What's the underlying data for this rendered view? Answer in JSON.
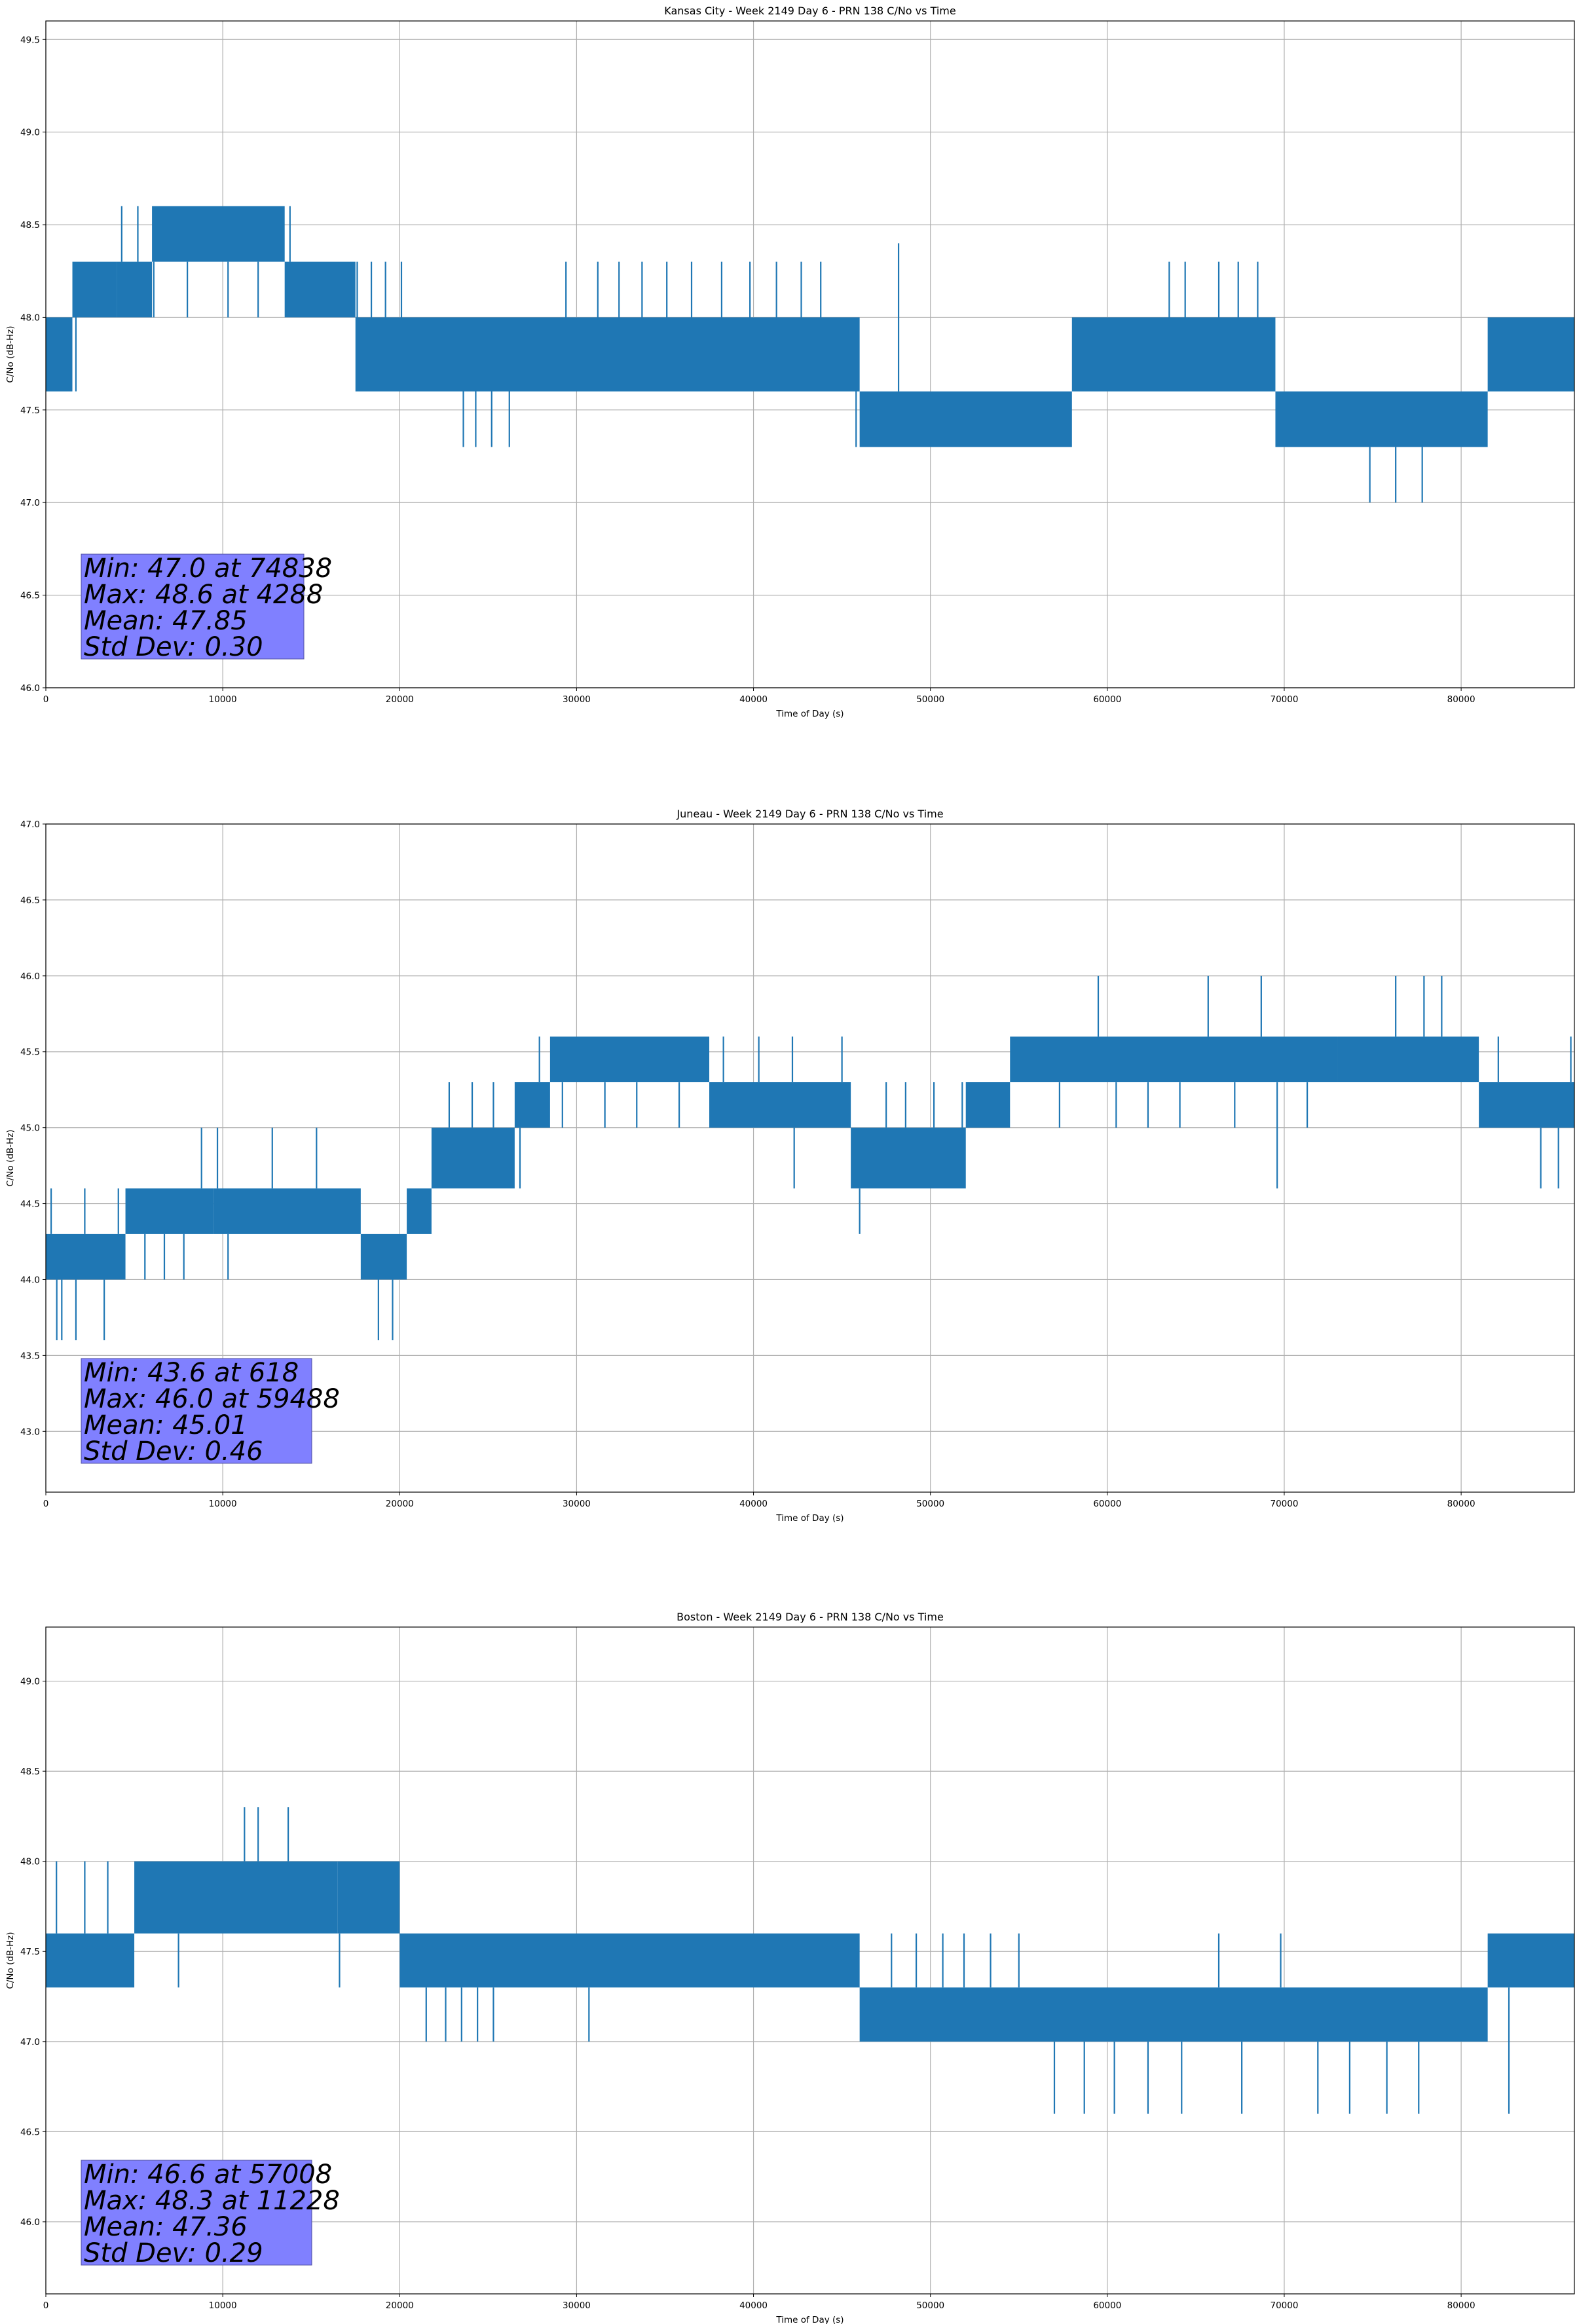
{
  "figure": {
    "background": "#ffffff"
  },
  "style": {
    "series_color": "#1f77b4",
    "grid_color": "#b0b0b0",
    "stats_box_color": "#8080ff"
  },
  "chart_data": [
    {
      "type": "line",
      "title": "Kansas City - Week 2149 Day 6 - PRN 138 C/No vs Time",
      "xlabel": "Time of Day (s)",
      "ylabel": "C/No (dB-Hz)",
      "xlim": [
        0,
        86400
      ],
      "ylim": [
        46.0,
        49.6
      ],
      "xticks": [
        0,
        10000,
        20000,
        30000,
        40000,
        50000,
        60000,
        70000,
        80000
      ],
      "yticks": [
        46.0,
        46.5,
        47.0,
        47.5,
        48.0,
        48.5,
        49.0,
        49.5
      ],
      "grid": true,
      "stats": [
        "Min: 47.0 at 74838",
        "Max: 48.6 at 4288",
        "Mean: 47.85",
        "Std Dev: 0.30"
      ],
      "series": [
        {
          "band_segments": [
            {
              "x": [
                0,
                1500
              ],
              "low": 47.6,
              "high": 48.0
            },
            {
              "x": [
                1500,
                4000
              ],
              "low": 48.0,
              "high": 48.3
            },
            {
              "x": [
                4000,
                6000
              ],
              "low": 48.0,
              "high": 48.3
            },
            {
              "x": [
                6000,
                13500
              ],
              "low": 48.3,
              "high": 48.6
            },
            {
              "x": [
                13500,
                17500
              ],
              "low": 48.0,
              "high": 48.3
            },
            {
              "x": [
                17500,
                46000
              ],
              "low": 47.6,
              "high": 48.0
            },
            {
              "x": [
                46000,
                58000
              ],
              "low": 47.3,
              "high": 47.6
            },
            {
              "x": [
                58000,
                69500
              ],
              "low": 47.6,
              "high": 48.0
            },
            {
              "x": [
                69500,
                81500
              ],
              "low": 47.3,
              "high": 47.6
            },
            {
              "x": [
                81500,
                86400
              ],
              "low": 47.6,
              "high": 48.0
            }
          ],
          "spikes": [
            [
              850,
              47.6
            ],
            [
              1700,
              47.6
            ],
            [
              1900,
              48.3
            ],
            [
              2600,
              48.3
            ],
            [
              3300,
              48.3
            ],
            [
              4288,
              48.6
            ],
            [
              5200,
              48.6
            ],
            [
              6100,
              48.0
            ],
            [
              6800,
              48.6
            ],
            [
              8000,
              48.0
            ],
            [
              10300,
              48.0
            ],
            [
              12000,
              48.0
            ],
            [
              13800,
              48.6
            ],
            [
              14500,
              48.3
            ],
            [
              15700,
              48.3
            ],
            [
              16800,
              48.3
            ],
            [
              17600,
              48.3
            ],
            [
              18400,
              48.3
            ],
            [
              19200,
              48.3
            ],
            [
              20100,
              48.3
            ],
            [
              20200,
              47.6
            ],
            [
              23600,
              47.3
            ],
            [
              24300,
              47.3
            ],
            [
              25200,
              47.3
            ],
            [
              26200,
              47.3
            ],
            [
              29400,
              48.3
            ],
            [
              31200,
              48.3
            ],
            [
              32400,
              48.3
            ],
            [
              33700,
              48.3
            ],
            [
              35100,
              48.3
            ],
            [
              36500,
              48.3
            ],
            [
              38200,
              48.3
            ],
            [
              39800,
              48.3
            ],
            [
              41300,
              48.3
            ],
            [
              42700,
              48.3
            ],
            [
              43800,
              48.3
            ],
            [
              45800,
              47.3
            ],
            [
              46700,
              47.3
            ],
            [
              48200,
              48.4
            ],
            [
              49500,
              47.3
            ],
            [
              51100,
              47.3
            ],
            [
              52800,
              47.3
            ],
            [
              54300,
              47.3
            ],
            [
              55700,
              47.3
            ],
            [
              63500,
              48.3
            ],
            [
              64400,
              48.3
            ],
            [
              66300,
              48.3
            ],
            [
              67400,
              48.3
            ],
            [
              68500,
              48.3
            ],
            [
              69800,
              47.3
            ],
            [
              71200,
              47.3
            ],
            [
              72600,
              47.3
            ],
            [
              73800,
              47.3
            ],
            [
              74838,
              47.0
            ],
            [
              75800,
              47.3
            ],
            [
              76300,
              47.0
            ],
            [
              77200,
              47.3
            ],
            [
              77800,
              47.0
            ],
            [
              78800,
              47.3
            ],
            [
              80300,
              47.3
            ],
            [
              81400,
              47.3
            ],
            [
              82400,
              48.0
            ],
            [
              83600,
              48.0
            ],
            [
              84800,
              48.0
            ],
            [
              85800,
              48.0
            ]
          ]
        }
      ]
    },
    {
      "type": "line",
      "title": "Juneau - Week 2149 Day 6 - PRN 138 C/No vs Time",
      "xlabel": "Time of Day (s)",
      "ylabel": "C/No (dB-Hz)",
      "xlim": [
        0,
        86400
      ],
      "ylim": [
        42.6,
        47.0
      ],
      "xticks": [
        0,
        10000,
        20000,
        30000,
        40000,
        50000,
        60000,
        70000,
        80000
      ],
      "yticks": [
        43.0,
        43.5,
        44.0,
        44.5,
        45.0,
        45.5,
        46.0,
        46.5,
        47.0
      ],
      "grid": true,
      "stats": [
        "Min: 43.6 at 618",
        "Max: 46.0 at 59488",
        "Mean: 45.01",
        "Std Dev: 0.46"
      ],
      "series": [
        {
          "band_segments": [
            {
              "x": [
                0,
                4500
              ],
              "low": 44.0,
              "high": 44.3
            },
            {
              "x": [
                4500,
                9500
              ],
              "low": 44.3,
              "high": 44.6
            },
            {
              "x": [
                9500,
                17800
              ],
              "low": 44.3,
              "high": 44.6
            },
            {
              "x": [
                17800,
                20400
              ],
              "low": 44.0,
              "high": 44.3
            },
            {
              "x": [
                20400,
                21800
              ],
              "low": 44.3,
              "high": 44.6
            },
            {
              "x": [
                21800,
                26500
              ],
              "low": 44.6,
              "high": 45.0
            },
            {
              "x": [
                26500,
                28500
              ],
              "low": 45.0,
              "high": 45.3
            },
            {
              "x": [
                28500,
                37500
              ],
              "low": 45.3,
              "high": 45.6
            },
            {
              "x": [
                37500,
                45500
              ],
              "low": 45.0,
              "high": 45.3
            },
            {
              "x": [
                45500,
                52000
              ],
              "low": 44.6,
              "high": 45.0
            },
            {
              "x": [
                52000,
                54500
              ],
              "low": 45.0,
              "high": 45.3
            },
            {
              "x": [
                54500,
                73000
              ],
              "low": 45.3,
              "high": 45.6
            },
            {
              "x": [
                73000,
                81000
              ],
              "low": 45.3,
              "high": 45.6
            },
            {
              "x": [
                81000,
                86400
              ],
              "low": 45.0,
              "high": 45.3
            }
          ],
          "spikes": [
            [
              300,
              44.6
            ],
            [
              618,
              43.6
            ],
            [
              900,
              43.6
            ],
            [
              1700,
              43.6
            ],
            [
              2200,
              44.6
            ],
            [
              3300,
              43.6
            ],
            [
              4100,
              44.6
            ],
            [
              5600,
              44.0
            ],
            [
              6700,
              44.0
            ],
            [
              7800,
              44.0
            ],
            [
              8800,
              45.0
            ],
            [
              9700,
              45.0
            ],
            [
              10300,
              44.0
            ],
            [
              12800,
              45.0
            ],
            [
              15300,
              45.0
            ],
            [
              16400,
              44.6
            ],
            [
              18800,
              43.6
            ],
            [
              19600,
              43.6
            ],
            [
              20500,
              44.6
            ],
            [
              22800,
              45.3
            ],
            [
              24100,
              45.3
            ],
            [
              25300,
              45.3
            ],
            [
              26800,
              44.6
            ],
            [
              27900,
              45.6
            ],
            [
              29200,
              45.0
            ],
            [
              31600,
              45.0
            ],
            [
              33400,
              45.0
            ],
            [
              35800,
              45.0
            ],
            [
              38300,
              45.6
            ],
            [
              40300,
              45.6
            ],
            [
              42200,
              45.6
            ],
            [
              42300,
              44.6
            ],
            [
              45000,
              45.6
            ],
            [
              46000,
              44.3
            ],
            [
              47500,
              45.3
            ],
            [
              48600,
              45.3
            ],
            [
              50200,
              45.3
            ],
            [
              51800,
              45.3
            ],
            [
              53200,
              45.3
            ],
            [
              55600,
              45.6
            ],
            [
              57300,
              45.0
            ],
            [
              59488,
              46.0
            ],
            [
              60500,
              45.0
            ],
            [
              62300,
              45.0
            ],
            [
              64100,
              45.0
            ],
            [
              65700,
              46.0
            ],
            [
              67200,
              45.0
            ],
            [
              68700,
              46.0
            ],
            [
              69600,
              44.6
            ],
            [
              71300,
              45.0
            ],
            [
              73200,
              45.3
            ],
            [
              76300,
              46.0
            ],
            [
              77900,
              46.0
            ],
            [
              78900,
              46.0
            ],
            [
              80200,
              45.3
            ],
            [
              82100,
              45.6
            ],
            [
              84500,
              44.6
            ],
            [
              85500,
              44.6
            ],
            [
              86200,
              45.6
            ]
          ]
        }
      ]
    },
    {
      "type": "line",
      "title": "Boston - Week 2149 Day 6 - PRN 138 C/No vs Time",
      "xlabel": "Time of Day (s)",
      "ylabel": "C/No (dB-Hz)",
      "xlim": [
        0,
        86400
      ],
      "ylim": [
        45.6,
        49.3
      ],
      "xticks": [
        0,
        10000,
        20000,
        30000,
        40000,
        50000,
        60000,
        70000,
        80000
      ],
      "yticks": [
        46.0,
        46.5,
        47.0,
        47.5,
        48.0,
        48.5,
        49.0
      ],
      "grid": true,
      "stats": [
        "Min: 46.6 at 57008",
        "Max: 48.3 at 11228",
        "Mean: 47.36",
        "Std Dev: 0.29"
      ],
      "series": [
        {
          "band_segments": [
            {
              "x": [
                0,
                5000
              ],
              "low": 47.3,
              "high": 47.6
            },
            {
              "x": [
                5000,
                16500
              ],
              "low": 47.6,
              "high": 48.0
            },
            {
              "x": [
                16500,
                20000
              ],
              "low": 47.6,
              "high": 48.0
            },
            {
              "x": [
                20000,
                46000
              ],
              "low": 47.3,
              "high": 47.6
            },
            {
              "x": [
                46000,
                81500
              ],
              "low": 47.0,
              "high": 47.3
            },
            {
              "x": [
                81500,
                86400
              ],
              "low": 47.3,
              "high": 47.6
            }
          ],
          "spikes": [
            [
              600,
              48.0
            ],
            [
              1300,
              47.3
            ],
            [
              2200,
              48.0
            ],
            [
              3500,
              48.0
            ],
            [
              4200,
              47.3
            ],
            [
              5300,
              48.0
            ],
            [
              6400,
              48.0
            ],
            [
              7500,
              47.3
            ],
            [
              8600,
              48.0
            ],
            [
              11228,
              48.3
            ],
            [
              12000,
              48.3
            ],
            [
              13700,
              48.3
            ],
            [
              16600,
              47.3
            ],
            [
              18200,
              48.0
            ],
            [
              19500,
              48.0
            ],
            [
              21500,
              47.0
            ],
            [
              22600,
              47.0
            ],
            [
              23500,
              47.0
            ],
            [
              24400,
              47.0
            ],
            [
              25300,
              47.0
            ],
            [
              30700,
              47.0
            ],
            [
              38600,
              47.3
            ],
            [
              44200,
              47.3
            ],
            [
              47800,
              47.6
            ],
            [
              49200,
              47.6
            ],
            [
              50700,
              47.6
            ],
            [
              51900,
              47.6
            ],
            [
              53400,
              47.6
            ],
            [
              55000,
              47.6
            ],
            [
              57008,
              46.6
            ],
            [
              58700,
              46.6
            ],
            [
              60400,
              46.6
            ],
            [
              62300,
              46.6
            ],
            [
              64200,
              46.6
            ],
            [
              66300,
              47.6
            ],
            [
              67600,
              46.6
            ],
            [
              69800,
              47.6
            ],
            [
              71900,
              46.6
            ],
            [
              73700,
              46.6
            ],
            [
              75800,
              46.6
            ],
            [
              77600,
              46.6
            ],
            [
              79300,
              47.3
            ],
            [
              80700,
              47.0
            ],
            [
              82700,
              46.6
            ],
            [
              84100,
              47.6
            ],
            [
              85400,
              47.6
            ]
          ]
        }
      ]
    }
  ]
}
